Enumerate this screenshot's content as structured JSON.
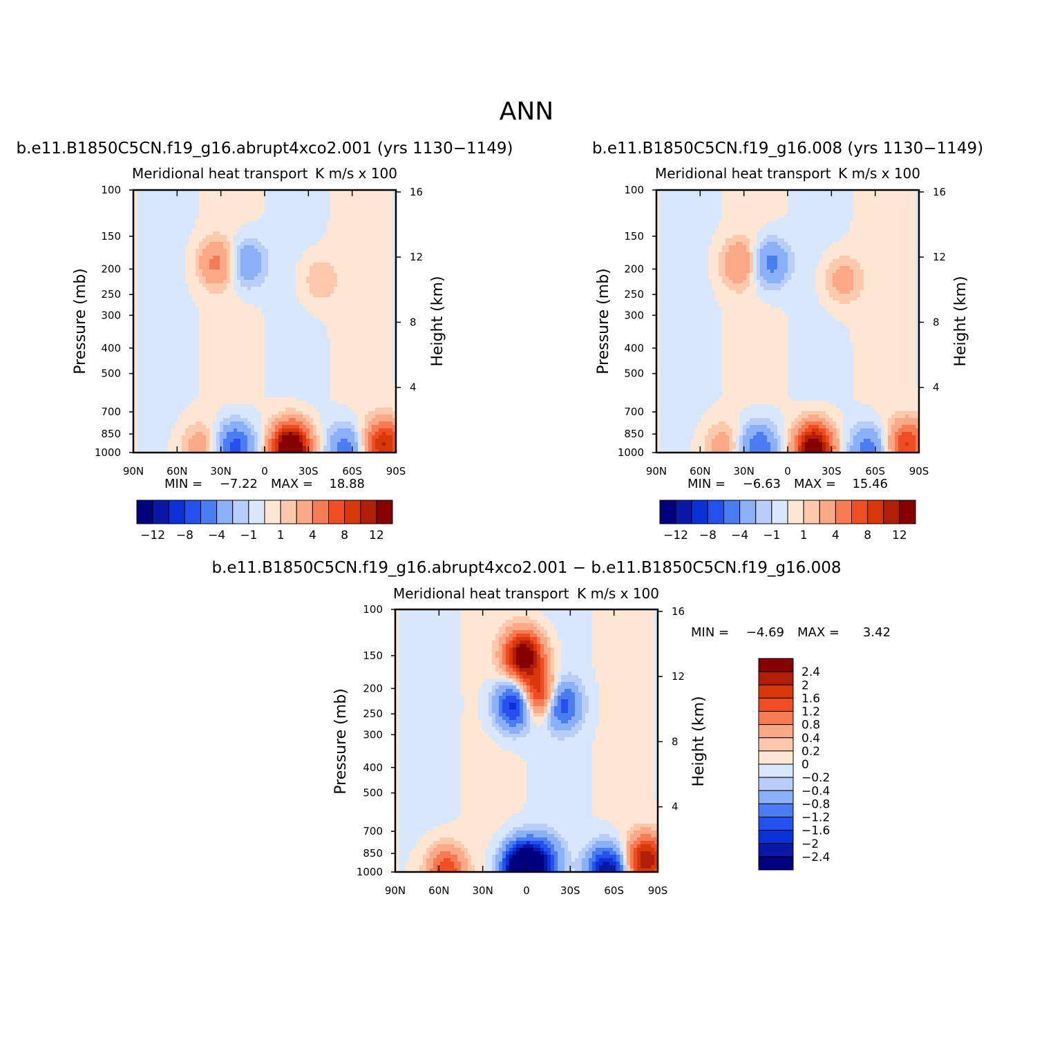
{
  "figure": {
    "main_title": "ANN"
  },
  "chart_data": [
    {
      "type": "heatmap",
      "title": "b.e11.B1850C5CN.f19_g16.abrupt4xco2.001 (yrs 1130−1149)",
      "left_string": "Meridional heat transport",
      "right_string": "K m/s x 100",
      "ylabel": "Pressure (mb)",
      "ylabel_right": "Height (km)",
      "xticks": [
        "90N",
        "60N",
        "30N",
        "0",
        "30S",
        "60S",
        "90S"
      ],
      "yticks": [
        "100",
        "150",
        "200",
        "250",
        "300",
        "400",
        "500",
        "700",
        "850",
        "1000"
      ],
      "yticks_right": [
        "16",
        "12",
        "8",
        "4"
      ],
      "min_label": "MIN =",
      "min_value": "−7.22",
      "max_label": "MAX =",
      "max_value": "18.88",
      "colorbar_labels": [
        "−12",
        "−8",
        "−4",
        "−1",
        "1",
        "4",
        "8",
        "12"
      ],
      "features": [
        {
          "lat": 33,
          "p": 190,
          "v": 4.5
        },
        {
          "lat": 12,
          "p": 190,
          "v": -4
        },
        {
          "lat": -38,
          "p": 220,
          "v": 2
        },
        {
          "lat": 20,
          "p": 950,
          "v": -7
        },
        {
          "lat": -18,
          "p": 960,
          "v": 18
        },
        {
          "lat": -55,
          "p": 970,
          "v": -5
        },
        {
          "lat": 45,
          "p": 950,
          "v": 3
        },
        {
          "lat": -82,
          "p": 930,
          "v": 10
        }
      ]
    },
    {
      "type": "heatmap",
      "title": "b.e11.B1850C5CN.f19_g16.008 (yrs 1130−1149)",
      "left_string": "Meridional heat transport",
      "right_string": "K m/s x 100",
      "ylabel": "Pressure (mb)",
      "ylabel_right": "Height (km)",
      "xticks": [
        "90N",
        "60N",
        "30N",
        "0",
        "30S",
        "60S",
        "90S"
      ],
      "yticks": [
        "100",
        "150",
        "200",
        "250",
        "300",
        "400",
        "500",
        "700",
        "850",
        "1000"
      ],
      "yticks_right": [
        "16",
        "12",
        "8",
        "4"
      ],
      "min_label": "MIN =",
      "min_value": "−6.63",
      "max_label": "MAX =",
      "max_value": "15.46",
      "colorbar_labels": [
        "−12",
        "−8",
        "−4",
        "−1",
        "1",
        "4",
        "8",
        "12"
      ],
      "features": [
        {
          "lat": 33,
          "p": 190,
          "v": 4
        },
        {
          "lat": 12,
          "p": 190,
          "v": -5
        },
        {
          "lat": -38,
          "p": 220,
          "v": 3
        },
        {
          "lat": 20,
          "p": 950,
          "v": -6
        },
        {
          "lat": -18,
          "p": 960,
          "v": 15
        },
        {
          "lat": -55,
          "p": 970,
          "v": -5
        },
        {
          "lat": 45,
          "p": 950,
          "v": 3
        },
        {
          "lat": -82,
          "p": 930,
          "v": 8
        }
      ]
    },
    {
      "type": "heatmap",
      "title": "b.e11.B1850C5CN.f19_g16.abrupt4xco2.001 − b.e11.B1850C5CN.f19_g16.008",
      "left_string": "Meridional heat transport",
      "right_string": "K m/s x 100",
      "ylabel": "Pressure (mb)",
      "ylabel_right": "Height (km)",
      "xticks": [
        "90N",
        "60N",
        "30N",
        "0",
        "30S",
        "60S",
        "90S"
      ],
      "yticks": [
        "100",
        "150",
        "200",
        "250",
        "300",
        "400",
        "500",
        "700",
        "850",
        "1000"
      ],
      "yticks_right": [
        "16",
        "12",
        "8",
        "4"
      ],
      "min_label": "MIN =",
      "min_value": "−4.69",
      "max_label": "MAX =",
      "max_value": "3.42",
      "colorbar_labels": [
        "2.4",
        "2",
        "1.6",
        "1.2",
        "0.8",
        "0.4",
        "0.2",
        "0",
        "−0.2",
        "−0.4",
        "−0.8",
        "−1.2",
        "−1.6",
        "−2",
        "−2.4"
      ],
      "features": [
        {
          "lat": 2,
          "p": 150,
          "v": 3
        },
        {
          "lat": -8,
          "p": 210,
          "v": 2
        },
        {
          "lat": 8,
          "p": 230,
          "v": -2
        },
        {
          "lat": -24,
          "p": 230,
          "v": -1.5
        },
        {
          "lat": 2,
          "p": 970,
          "v": -4.5
        },
        {
          "lat": -12,
          "p": 900,
          "v": -1.2
        },
        {
          "lat": -82,
          "p": 900,
          "v": 2.4
        },
        {
          "lat": -55,
          "p": 990,
          "v": -2.4
        },
        {
          "lat": 55,
          "p": 990,
          "v": 1.6
        }
      ]
    }
  ],
  "colors": {
    "diverging": [
      "#00007f",
      "#0a18a8",
      "#0a32d8",
      "#2450ee",
      "#4a7cf2",
      "#8ab0f8",
      "#b8cdf8",
      "#d8e7fb",
      "#fde6d2",
      "#fcc9ad",
      "#faa886",
      "#f67b53",
      "#f04d23",
      "#d83808",
      "#b11e08",
      "#860000"
    ],
    "background": "#ffffff"
  }
}
